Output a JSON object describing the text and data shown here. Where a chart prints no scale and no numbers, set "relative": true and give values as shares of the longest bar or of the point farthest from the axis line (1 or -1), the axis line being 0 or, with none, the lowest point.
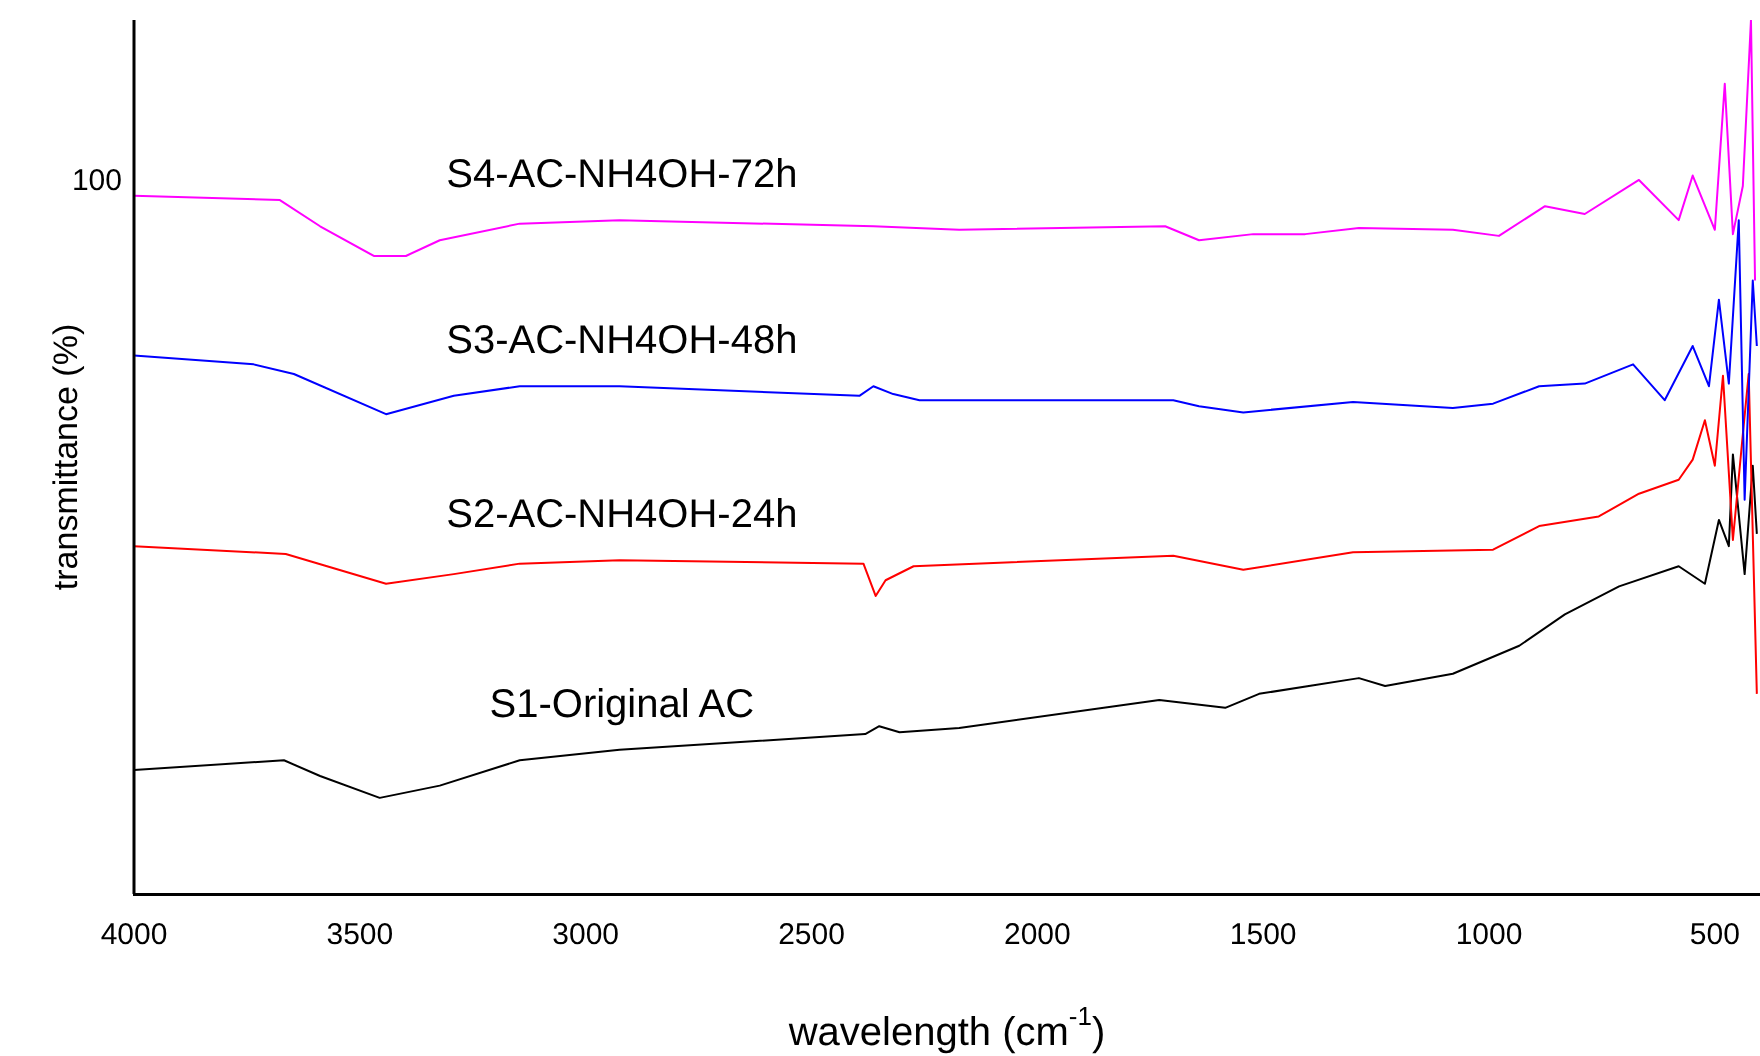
{
  "chart_data": {
    "type": "line",
    "relative": true,
    "xlabel": "wavelength (cm$^{-1}$)",
    "ylabel": "transmittance (%)",
    "xlim": [
      4000,
      400
    ],
    "xticks": [
      4000,
      3500,
      3000,
      2500,
      2000,
      1500,
      1000,
      500
    ],
    "legend": false,
    "grid": false,
    "marker": "none",
    "annotations": [
      "100"
    ],
    "series": [
      {
        "name": "S4-AC-NH4OH-72h",
        "color": "#ff00ff",
        "x": [
          4000,
          3677,
          3588,
          3469,
          3398,
          3323,
          3146,
          2925,
          2363,
          2173,
          1717,
          1642,
          1522,
          1407,
          1288,
          1080,
          978,
          876,
          788,
          668,
          580,
          549,
          500,
          478,
          460,
          438,
          420,
          411
        ],
        "values": [
          0.799,
          0.794,
          0.764,
          0.73,
          0.73,
          0.748,
          0.767,
          0.771,
          0.764,
          0.76,
          0.764,
          0.748,
          0.755,
          0.755,
          0.762,
          0.76,
          0.753,
          0.787,
          0.778,
          0.817,
          0.771,
          0.822,
          0.76,
          0.927,
          0.755,
          0.81,
          1.0,
          0.702
        ]
      },
      {
        "name": "S3-AC-NH4OH-48h",
        "color": "#0000ff",
        "x": [
          4000,
          3735,
          3646,
          3442,
          3292,
          3146,
          2925,
          2394,
          2363,
          2319,
          2261,
          1699,
          1642,
          1544,
          1301,
          1080,
          991,
          889,
          788,
          681,
          611,
          549,
          513,
          491,
          469,
          447,
          434,
          416,
          407
        ],
        "values": [
          0.616,
          0.606,
          0.595,
          0.549,
          0.57,
          0.581,
          0.581,
          0.57,
          0.581,
          0.572,
          0.565,
          0.565,
          0.558,
          0.551,
          0.563,
          0.556,
          0.561,
          0.581,
          0.584,
          0.606,
          0.565,
          0.627,
          0.581,
          0.68,
          0.584,
          0.771,
          0.451,
          0.702,
          0.627
        ]
      },
      {
        "name": "S2-AC-NH4OH-24h",
        "color": "#ff0000",
        "x": [
          4000,
          3664,
          3442,
          3292,
          3146,
          2925,
          2385,
          2358,
          2336,
          2274,
          1699,
          1544,
          1301,
          991,
          889,
          757,
          668,
          580,
          549,
          522,
          500,
          482,
          460,
          438,
          425,
          407
        ],
        "values": [
          0.398,
          0.389,
          0.355,
          0.366,
          0.378,
          0.382,
          0.378,
          0.341,
          0.359,
          0.375,
          0.387,
          0.371,
          0.391,
          0.394,
          0.421,
          0.432,
          0.458,
          0.474,
          0.497,
          0.542,
          0.49,
          0.593,
          0.405,
          0.526,
          0.595,
          0.229
        ]
      },
      {
        "name": "S1-Original AC",
        "color": "#000000",
        "x": [
          4000,
          3668,
          3588,
          3456,
          3323,
          3146,
          2925,
          2381,
          2350,
          2305,
          2173,
          1730,
          1584,
          1509,
          1288,
          1230,
          1080,
          933,
          832,
          712,
          580,
          522,
          491,
          469,
          460,
          434,
          416,
          407
        ],
        "values": [
          0.142,
          0.153,
          0.135,
          0.11,
          0.124,
          0.153,
          0.165,
          0.183,
          0.192,
          0.185,
          0.19,
          0.222,
          0.213,
          0.229,
          0.247,
          0.238,
          0.252,
          0.284,
          0.32,
          0.352,
          0.375,
          0.355,
          0.428,
          0.398,
          0.503,
          0.366,
          0.49,
          0.412
        ]
      }
    ]
  }
}
